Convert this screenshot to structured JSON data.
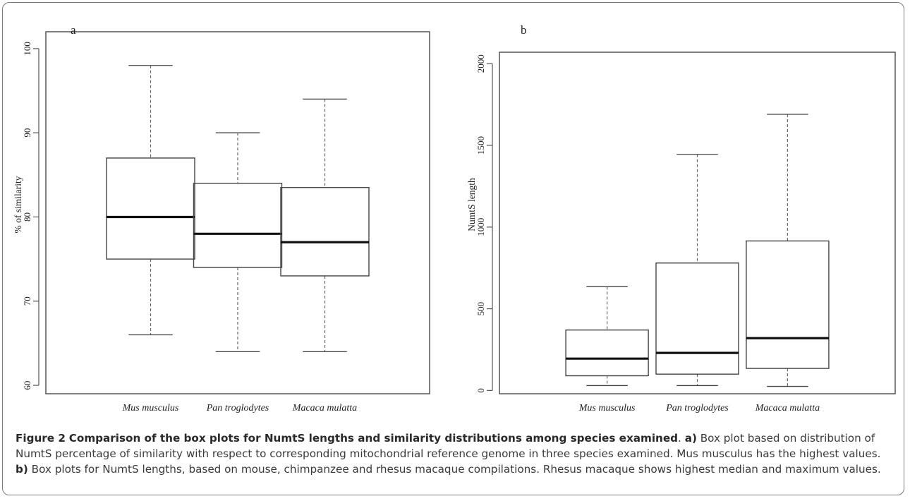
{
  "chart_data": [
    {
      "type": "box",
      "panel_label": "a",
      "ylabel": "% of similarity",
      "ylim": [
        59,
        102
      ],
      "yticks": [
        60,
        70,
        80,
        90,
        100
      ],
      "categories": [
        "Mus musculus",
        "Pan troglodytes",
        "Macaca mulatta"
      ],
      "boxes": [
        {
          "min": 66,
          "q1": 75,
          "median": 80,
          "q3": 87,
          "max": 98
        },
        {
          "min": 64,
          "q1": 74,
          "median": 78,
          "q3": 84,
          "max": 90
        },
        {
          "min": 64,
          "q1": 73,
          "median": 77,
          "q3": 83.5,
          "max": 94
        }
      ]
    },
    {
      "type": "box",
      "panel_label": "b",
      "ylabel": "NumtS length",
      "ylim": [
        -20,
        2070
      ],
      "yticks": [
        0,
        500,
        1000,
        1500,
        2000
      ],
      "categories": [
        "Mus musculus",
        "Pan troglodytes",
        "Macaca mulatta"
      ],
      "boxes": [
        {
          "min": 30,
          "q1": 90,
          "median": 195,
          "q3": 370,
          "max": 635
        },
        {
          "min": 30,
          "q1": 100,
          "median": 230,
          "q3": 780,
          "max": 1445
        },
        {
          "min": 25,
          "q1": 135,
          "median": 320,
          "q3": 915,
          "max": 1690
        }
      ]
    }
  ],
  "caption": {
    "figure_label": "Figure 2",
    "bold_title": "Comparison of the box plots for NumtS lengths and similarity distributions among species examined",
    "sep": ". ",
    "a_label": "a)",
    "a_text": " Box plot based on distribution of NumtS percentage of similarity with respect to corresponding mitochondrial reference genome in three species examined. Mus musculus has the highest values. ",
    "b_label": "b)",
    "b_text": " Box plots for NumtS lengths, based on mouse, chimpanzee and rhesus macaque compilations. Rhesus macaque shows highest median and maximum values."
  }
}
